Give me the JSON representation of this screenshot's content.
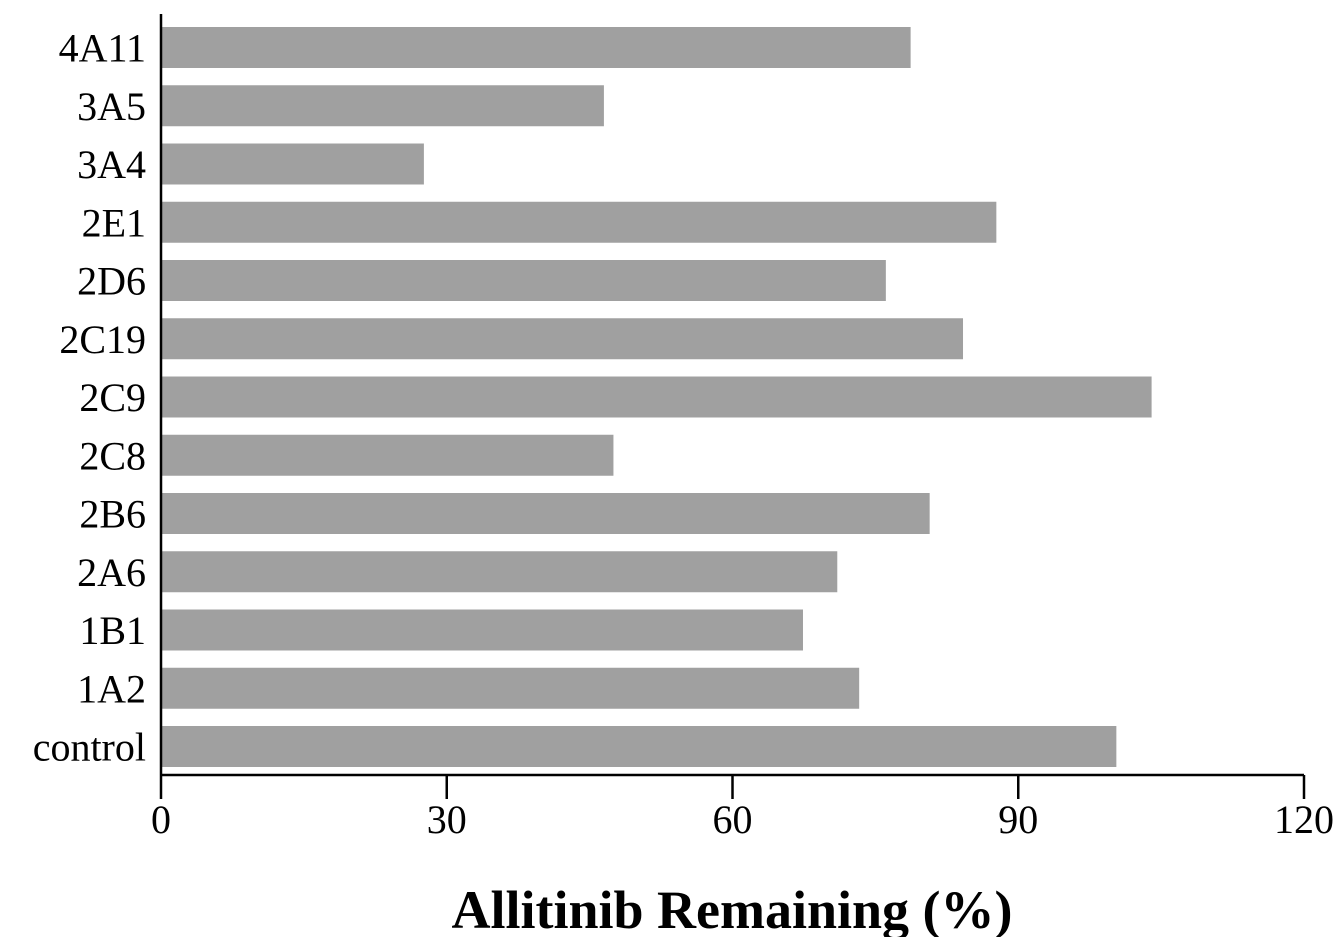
{
  "chart_data": {
    "type": "bar",
    "orientation": "horizontal",
    "categories": [
      "control",
      "1A2",
      "1B1",
      "2A6",
      "2B6",
      "2C8",
      "2C9",
      "2C19",
      "2D6",
      "2E1",
      "3A4",
      "3A5",
      "4A11"
    ],
    "values": [
      100.3,
      73.3,
      67.4,
      71.0,
      80.7,
      47.5,
      104.0,
      84.2,
      76.1,
      87.7,
      27.6,
      46.5,
      78.7
    ],
    "xlabel": "Allitinib Remaining (%)",
    "ylabel": "",
    "xlim": [
      0,
      120
    ],
    "xticks": [
      "0",
      "30",
      "60",
      "90",
      "120"
    ],
    "bar_color": "#a0a0a0",
    "grid": false,
    "legend": "none"
  }
}
